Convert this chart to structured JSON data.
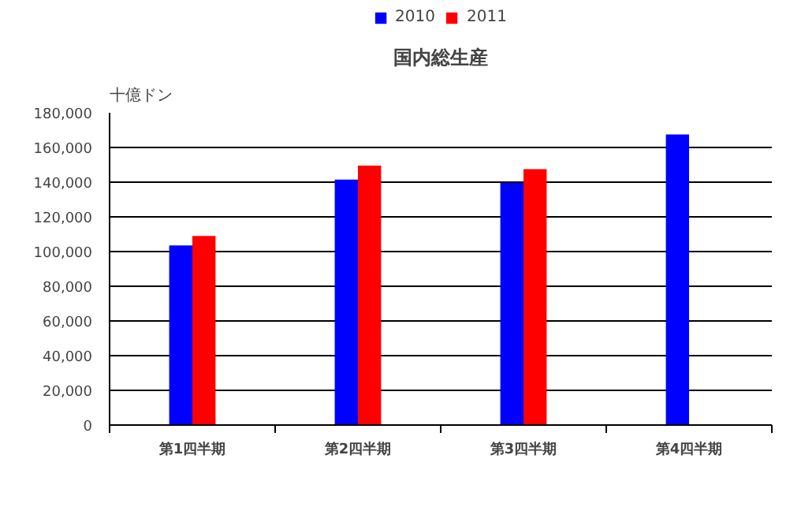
{
  "chart_data": {
    "type": "bar",
    "title": "国内総生産",
    "ylabel": "十億ドン",
    "categories": [
      "第1四半期",
      "第2四半期",
      "第3四半期",
      "第4四半期"
    ],
    "series": [
      {
        "name": "2010",
        "color": "#0000ff",
        "values": [
          103500,
          141500,
          139500,
          167500
        ]
      },
      {
        "name": "2011",
        "color": "#ff0000",
        "values": [
          109000,
          149500,
          147500,
          null
        ]
      }
    ],
    "ylim": [
      0,
      180000
    ],
    "yticks": [
      {
        "value": 0,
        "label": "0"
      },
      {
        "value": 20000,
        "label": "20,000"
      },
      {
        "value": 40000,
        "label": "40,000"
      },
      {
        "value": 60000,
        "label": "60,000"
      },
      {
        "value": 80000,
        "label": "80,000"
      },
      {
        "value": 100000,
        "label": "100,000"
      },
      {
        "value": 120000,
        "label": "120,000"
      },
      {
        "value": 140000,
        "label": "140,000"
      },
      {
        "value": 160000,
        "label": "160,000"
      },
      {
        "value": 180000,
        "label": "180,000"
      }
    ],
    "grid": "y",
    "legend": "top"
  }
}
